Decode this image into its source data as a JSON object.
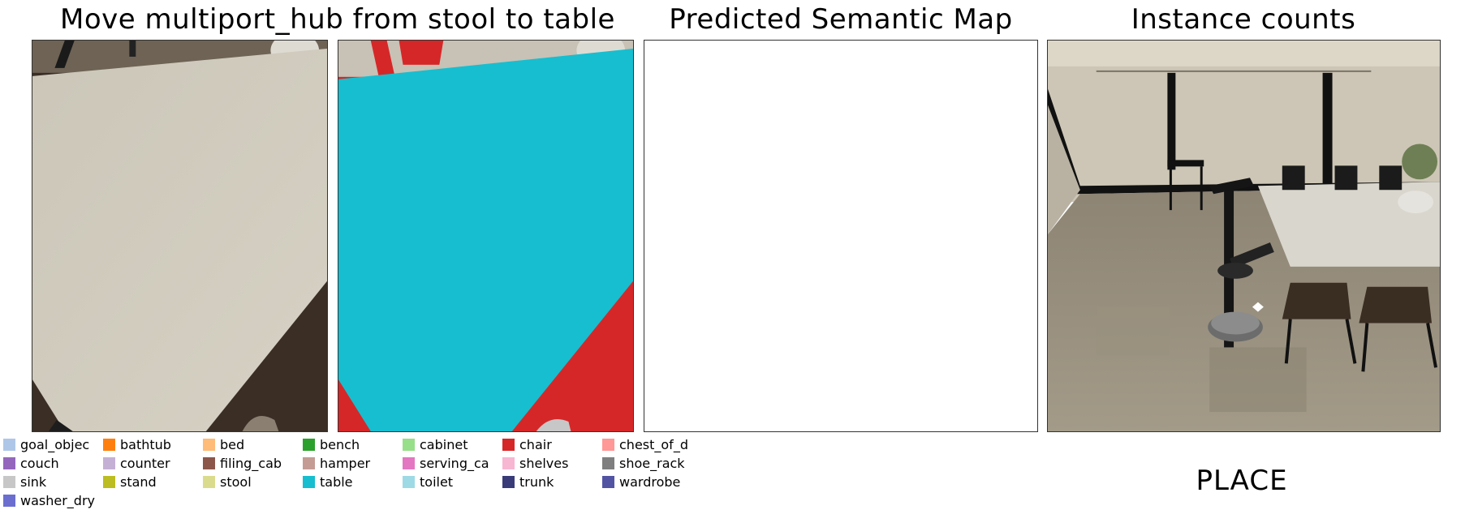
{
  "titles": {
    "task": "Move multiport_hub from stool to table",
    "semantic_map": "Predicted Semantic Map",
    "instance_counts": "Instance counts"
  },
  "status": "PLACE",
  "legend": [
    {
      "label": "goal_objec",
      "color": "#aec7e8"
    },
    {
      "label": "bathtub",
      "color": "#ff7f0e"
    },
    {
      "label": "bed",
      "color": "#ffbb78"
    },
    {
      "label": "bench",
      "color": "#2ca02c"
    },
    {
      "label": "cabinet",
      "color": "#98df8a"
    },
    {
      "label": "chair",
      "color": "#d62728"
    },
    {
      "label": "chest_of_d",
      "color": "#ff9896"
    },
    {
      "label": "couch",
      "color": "#9467bd"
    },
    {
      "label": "counter",
      "color": "#c5b0d5"
    },
    {
      "label": "filing_cab",
      "color": "#8c564b"
    },
    {
      "label": "hamper",
      "color": "#c49c94"
    },
    {
      "label": "serving_ca",
      "color": "#e377c2"
    },
    {
      "label": "shelves",
      "color": "#f7b6d2"
    },
    {
      "label": "shoe_rack",
      "color": "#7f7f7f"
    },
    {
      "label": "sink",
      "color": "#c7c7c7"
    },
    {
      "label": "stand",
      "color": "#bcbd22"
    },
    {
      "label": "stool",
      "color": "#dbdb8d"
    },
    {
      "label": "table",
      "color": "#17becf"
    },
    {
      "label": "toilet",
      "color": "#9edae5"
    },
    {
      "label": "trunk",
      "color": "#393b79"
    },
    {
      "label": "wardrobe",
      "color": "#5254a3"
    },
    {
      "label": "washer_dry",
      "color": "#6b6ecf"
    }
  ],
  "colors": {
    "table_gray": "#cdc8bb",
    "floor_dark": "#3b2f26",
    "seg_table": "#17becf",
    "seg_chair": "#d62728"
  }
}
